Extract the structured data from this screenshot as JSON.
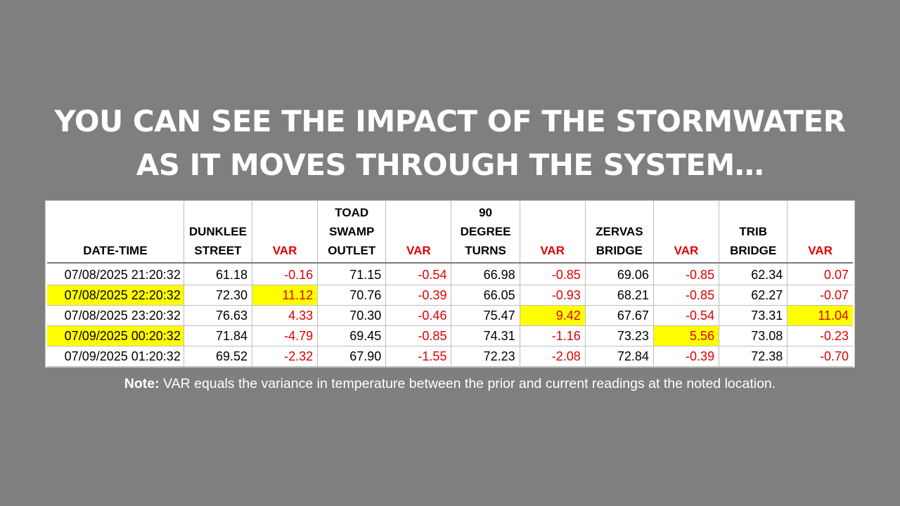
{
  "slide": {
    "title_line1": "YOU CAN SEE THE IMPACT OF THE STORMWATER",
    "title_line2": "AS IT MOVES THROUGH THE SYSTEM…"
  },
  "table": {
    "headers": [
      {
        "lines": [
          "DATE-TIME"
        ],
        "is_var": false
      },
      {
        "lines": [
          "DUNKLEE",
          "STREET"
        ],
        "is_var": false
      },
      {
        "lines": [
          "VAR"
        ],
        "is_var": true
      },
      {
        "lines": [
          "TOAD",
          "SWAMP",
          "OUTLET"
        ],
        "is_var": false
      },
      {
        "lines": [
          "VAR"
        ],
        "is_var": true
      },
      {
        "lines": [
          "90",
          "DEGREE",
          "TURNS"
        ],
        "is_var": false
      },
      {
        "lines": [
          "VAR"
        ],
        "is_var": true
      },
      {
        "lines": [
          "ZERVAS",
          "BRIDGE"
        ],
        "is_var": false
      },
      {
        "lines": [
          "VAR"
        ],
        "is_var": true
      },
      {
        "lines": [
          "TRIB",
          "BRIDGE"
        ],
        "is_var": false
      },
      {
        "lines": [
          "VAR"
        ],
        "is_var": true
      }
    ],
    "rows": [
      {
        "cells": [
          "07/08/2025 21:20:32",
          "61.18",
          "-0.16",
          "71.15",
          "-0.54",
          "66.98",
          "-0.85",
          "69.06",
          "-0.85",
          "62.34",
          "0.07"
        ],
        "highlight": []
      },
      {
        "cells": [
          "07/08/2025 22:20:32",
          "72.30",
          "11.12",
          "70.76",
          "-0.39",
          "66.05",
          "-0.93",
          "68.21",
          "-0.85",
          "62.27",
          "-0.07"
        ],
        "highlight": [
          0,
          2
        ]
      },
      {
        "cells": [
          "07/08/2025 23:20:32",
          "76.63",
          "4.33",
          "70.30",
          "-0.46",
          "75.47",
          "9.42",
          "67.67",
          "-0.54",
          "73.31",
          "11.04"
        ],
        "highlight": [
          6,
          10
        ]
      },
      {
        "cells": [
          "07/09/2025 00:20:32",
          "71.84",
          "-4.79",
          "69.45",
          "-0.85",
          "74.31",
          "-1.16",
          "73.23",
          "5.56",
          "73.08",
          "-0.23"
        ],
        "highlight": [
          0,
          8
        ]
      },
      {
        "cells": [
          "07/09/2025 01:20:32",
          "69.52",
          "-2.32",
          "67.90",
          "-1.55",
          "72.23",
          "-2.08",
          "72.84",
          "-0.39",
          "72.38",
          "-0.70"
        ],
        "highlight": []
      }
    ]
  },
  "note": {
    "label": "Note:",
    "text": " VAR equals the variance in temperature between the prior and current readings at the noted location."
  },
  "colors": {
    "background": "#7f7f7f",
    "highlight": "#ffff00",
    "var_text": "#e00000"
  }
}
